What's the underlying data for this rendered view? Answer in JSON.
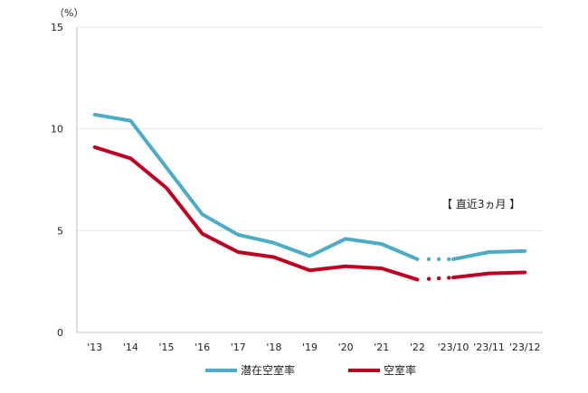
{
  "chart_data": {
    "type": "line",
    "unit_label": "（%）",
    "annotation": "【 直近3ヵ月 】",
    "categories": [
      "'13",
      "'14",
      "'15",
      "'16",
      "'17",
      "'18",
      "'19",
      "'20",
      "'21",
      "'22",
      "'23/10",
      "'23/11",
      "'23/12"
    ],
    "y_ticks": [
      "0",
      "5",
      "10",
      "15"
    ],
    "ylim": [
      0,
      15
    ],
    "grid": "horizontal",
    "legend_position": "bottom",
    "series": [
      {
        "name": "潜在空室率",
        "color": "#4bacc6",
        "values": [
          10.7,
          10.4,
          8.1,
          5.8,
          4.8,
          4.4,
          3.75,
          4.6,
          4.35,
          3.6,
          3.6,
          3.95,
          4.0
        ]
      },
      {
        "name": "空室率",
        "color": "#c00020",
        "values": [
          9.1,
          8.55,
          7.1,
          4.85,
          3.95,
          3.7,
          3.05,
          3.25,
          3.15,
          2.6,
          2.7,
          2.9,
          2.95
        ]
      }
    ]
  }
}
